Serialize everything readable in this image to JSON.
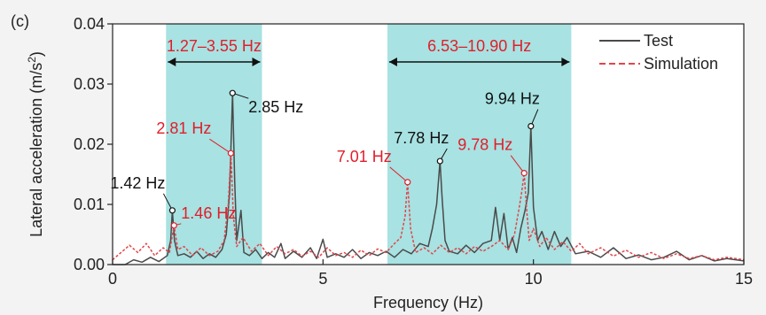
{
  "chart_data": {
    "panel_label": "(c)",
    "type": "line",
    "xlabel": "Frequency (Hz)",
    "ylabel_main": "Lateral acceleration (m/s",
    "ylabel_sup": "2",
    "ylabel_end": ")",
    "xlim": [
      0,
      15
    ],
    "ylim": [
      0,
      0.04
    ],
    "x_ticks": [
      0,
      5,
      10,
      15
    ],
    "x_tick_labels": [
      "0",
      "5",
      "10",
      "15"
    ],
    "y_ticks": [
      0,
      0.01,
      0.02,
      0.03,
      0.04
    ],
    "y_tick_labels": [
      "0.00",
      "0.01",
      "0.02",
      "0.03",
      "0.04"
    ],
    "grid": false,
    "legend_position": "top-right",
    "bands": [
      {
        "range": [
          1.27,
          3.55
        ],
        "label": "1.27–3.55 Hz"
      },
      {
        "range": [
          6.53,
          10.9
        ],
        "label": "6.53–10.90 Hz"
      }
    ],
    "band_color": "#a8e2e2",
    "series": [
      {
        "name": "Test",
        "color": "#4a4a4a",
        "dashed": false,
        "points": [
          [
            0,
            0
          ],
          [
            0.3,
            0
          ],
          [
            0.5,
            0.0008
          ],
          [
            0.7,
            0.0004
          ],
          [
            0.9,
            0.0012
          ],
          [
            1.1,
            0.0005
          ],
          [
            1.3,
            0.0015
          ],
          [
            1.38,
            0.004
          ],
          [
            1.42,
            0.009
          ],
          [
            1.47,
            0.004
          ],
          [
            1.55,
            0.0015
          ],
          [
            1.7,
            0.0018
          ],
          [
            1.85,
            0.0012
          ],
          [
            2.0,
            0.0022
          ],
          [
            2.15,
            0.001
          ],
          [
            2.3,
            0.0018
          ],
          [
            2.45,
            0.0012
          ],
          [
            2.6,
            0.0025
          ],
          [
            2.7,
            0.005
          ],
          [
            2.78,
            0.012
          ],
          [
            2.85,
            0.0285
          ],
          [
            2.9,
            0.014
          ],
          [
            2.95,
            0.004
          ],
          [
            3.05,
            0.009
          ],
          [
            3.12,
            0.002
          ],
          [
            3.25,
            0.0015
          ],
          [
            3.4,
            0.0025
          ],
          [
            3.55,
            0.001
          ],
          [
            3.7,
            0.002
          ],
          [
            3.85,
            0.0012
          ],
          [
            4.0,
            0.0035
          ],
          [
            4.1,
            0.001
          ],
          [
            4.3,
            0.0022
          ],
          [
            4.5,
            0.0012
          ],
          [
            4.7,
            0.0028
          ],
          [
            4.85,
            0.001
          ],
          [
            5.0,
            0.0042
          ],
          [
            5.1,
            0.0012
          ],
          [
            5.3,
            0.0018
          ],
          [
            5.5,
            0.0012
          ],
          [
            5.7,
            0.0025
          ],
          [
            5.9,
            0.001
          ],
          [
            6.1,
            0.002
          ],
          [
            6.3,
            0.0015
          ],
          [
            6.5,
            0.0022
          ],
          [
            6.7,
            0.0012
          ],
          [
            6.9,
            0.0025
          ],
          [
            7.1,
            0.0018
          ],
          [
            7.3,
            0.0035
          ],
          [
            7.5,
            0.003
          ],
          [
            7.6,
            0.006
          ],
          [
            7.7,
            0.01
          ],
          [
            7.78,
            0.0172
          ],
          [
            7.83,
            0.011
          ],
          [
            7.9,
            0.004
          ],
          [
            8.0,
            0.0022
          ],
          [
            8.2,
            0.0018
          ],
          [
            8.4,
            0.0032
          ],
          [
            8.6,
            0.002
          ],
          [
            8.8,
            0.0035
          ],
          [
            9.0,
            0.004
          ],
          [
            9.1,
            0.0095
          ],
          [
            9.2,
            0.004
          ],
          [
            9.3,
            0.0085
          ],
          [
            9.4,
            0.0025
          ],
          [
            9.5,
            0.0045
          ],
          [
            9.6,
            0.002
          ],
          [
            9.7,
            0.006
          ],
          [
            9.8,
            0.009
          ],
          [
            9.88,
            0.012
          ],
          [
            9.94,
            0.023
          ],
          [
            10.0,
            0.0095
          ],
          [
            10.1,
            0.004
          ],
          [
            10.2,
            0.0055
          ],
          [
            10.35,
            0.0025
          ],
          [
            10.5,
            0.0055
          ],
          [
            10.65,
            0.003
          ],
          [
            10.8,
            0.0045
          ],
          [
            11.0,
            0.0018
          ],
          [
            11.3,
            0.0022
          ],
          [
            11.6,
            0.0012
          ],
          [
            11.9,
            0.0028
          ],
          [
            12.2,
            0.001
          ],
          [
            12.5,
            0.0016
          ],
          [
            12.8,
            0.0008
          ],
          [
            13.1,
            0.0012
          ],
          [
            13.4,
            0.0022
          ],
          [
            13.7,
            0.0008
          ],
          [
            14.0,
            0.0015
          ],
          [
            14.3,
            0.0006
          ],
          [
            14.6,
            0.001
          ],
          [
            15,
            0.0006
          ]
        ]
      },
      {
        "name": "Simulation",
        "color": "#e2454b",
        "dashed": true,
        "points": [
          [
            0,
            0.0008
          ],
          [
            0.4,
            0.0032
          ],
          [
            0.6,
            0.002
          ],
          [
            0.8,
            0.0035
          ],
          [
            1.0,
            0.0015
          ],
          [
            1.2,
            0.0028
          ],
          [
            1.35,
            0.002
          ],
          [
            1.46,
            0.0065
          ],
          [
            1.55,
            0.0025
          ],
          [
            1.7,
            0.003
          ],
          [
            1.9,
            0.0015
          ],
          [
            2.1,
            0.0028
          ],
          [
            2.3,
            0.0015
          ],
          [
            2.5,
            0.0022
          ],
          [
            2.65,
            0.004
          ],
          [
            2.75,
            0.01
          ],
          [
            2.81,
            0.0185
          ],
          [
            2.87,
            0.008
          ],
          [
            2.95,
            0.003
          ],
          [
            3.1,
            0.0045
          ],
          [
            3.3,
            0.0022
          ],
          [
            3.5,
            0.0035
          ],
          [
            3.7,
            0.0015
          ],
          [
            3.9,
            0.003
          ],
          [
            4.1,
            0.0018
          ],
          [
            4.3,
            0.0025
          ],
          [
            4.5,
            0.0014
          ],
          [
            4.7,
            0.0022
          ],
          [
            4.9,
            0.0012
          ],
          [
            5.1,
            0.0028
          ],
          [
            5.3,
            0.0015
          ],
          [
            5.5,
            0.002
          ],
          [
            5.7,
            0.0012
          ],
          [
            5.9,
            0.0024
          ],
          [
            6.1,
            0.0015
          ],
          [
            6.3,
            0.0026
          ],
          [
            6.5,
            0.002
          ],
          [
            6.7,
            0.0035
          ],
          [
            6.85,
            0.0045
          ],
          [
            6.95,
            0.008
          ],
          [
            7.01,
            0.0137
          ],
          [
            7.08,
            0.006
          ],
          [
            7.2,
            0.002
          ],
          [
            7.4,
            0.0028
          ],
          [
            7.6,
            0.0018
          ],
          [
            7.8,
            0.0032
          ],
          [
            8.0,
            0.002
          ],
          [
            8.2,
            0.0028
          ],
          [
            8.4,
            0.0018
          ],
          [
            8.6,
            0.003
          ],
          [
            8.8,
            0.0022
          ],
          [
            9.0,
            0.003
          ],
          [
            9.2,
            0.004
          ],
          [
            9.4,
            0.0025
          ],
          [
            9.55,
            0.005
          ],
          [
            9.65,
            0.009
          ],
          [
            9.72,
            0.012
          ],
          [
            9.78,
            0.0152
          ],
          [
            9.84,
            0.009
          ],
          [
            9.9,
            0.004
          ],
          [
            10.0,
            0.006
          ],
          [
            10.15,
            0.003
          ],
          [
            10.3,
            0.0045
          ],
          [
            10.5,
            0.0025
          ],
          [
            10.7,
            0.0038
          ],
          [
            10.9,
            0.0022
          ],
          [
            11.1,
            0.0035
          ],
          [
            11.3,
            0.0018
          ],
          [
            11.6,
            0.0028
          ],
          [
            11.9,
            0.0014
          ],
          [
            12.2,
            0.0024
          ],
          [
            12.5,
            0.0012
          ],
          [
            12.8,
            0.002
          ],
          [
            13.1,
            0.001
          ],
          [
            13.4,
            0.0018
          ],
          [
            13.7,
            0.001
          ],
          [
            14.0,
            0.0015
          ],
          [
            14.3,
            0.0008
          ],
          [
            14.6,
            0.0012
          ],
          [
            15,
            0.0008
          ]
        ]
      }
    ],
    "annotations": [
      {
        "label": "1.42 Hz",
        "color": "#111111",
        "x": 1.42,
        "y": 0.009
      },
      {
        "label": "1.46 Hz",
        "color": "#e01e2a",
        "x": 1.46,
        "y": 0.0065
      },
      {
        "label": "2.81 Hz",
        "color": "#e01e2a",
        "x": 2.81,
        "y": 0.0185
      },
      {
        "label": "2.85 Hz",
        "color": "#111111",
        "x": 2.85,
        "y": 0.0285
      },
      {
        "label": "7.01 Hz",
        "color": "#e01e2a",
        "x": 7.01,
        "y": 0.0137
      },
      {
        "label": "7.78 Hz",
        "color": "#111111",
        "x": 7.78,
        "y": 0.0172
      },
      {
        "label": "9.78 Hz",
        "color": "#e01e2a",
        "x": 9.78,
        "y": 0.0152
      },
      {
        "label": "9.94 Hz",
        "color": "#111111",
        "x": 9.94,
        "y": 0.023
      }
    ]
  }
}
